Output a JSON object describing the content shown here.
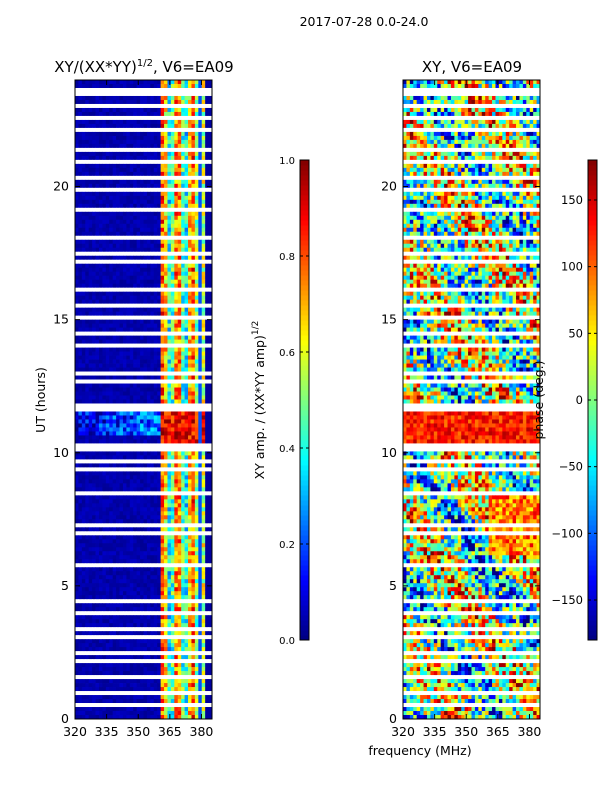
{
  "figure": {
    "suptitle": "2017-07-28 0.0-24.0",
    "shared_xlabel": "frequency (MHz)"
  },
  "colors": {
    "cmap": [
      "#00007f",
      "#0000ff",
      "#007fff",
      "#00ffff",
      "#7fff7f",
      "#ffff00",
      "#ff7f00",
      "#ff0000",
      "#7f0000"
    ],
    "gap": "#ffffff",
    "frame": "#000000"
  },
  "chart_data": [
    {
      "type": "heatmap",
      "title_text": "XY/(XX*YY)",
      "title_sup": "1/2",
      "title_suffix": ", V6=EA09",
      "ylabel": "UT (hours)",
      "xlabel": "",
      "xlim": [
        320,
        385
      ],
      "ylim": [
        0,
        24
      ],
      "xticks": [
        320,
        335,
        350,
        365,
        380
      ],
      "yticks": [
        0,
        5,
        10,
        15,
        20
      ],
      "variant": "amplitude",
      "colorbar": {
        "label_text": "XY amp. / (XX*YY amp)",
        "label_sup": "1/2",
        "range": [
          0.0,
          1.0
        ],
        "ticks": [
          0.0,
          0.2,
          0.4,
          0.6,
          0.8,
          1.0
        ],
        "tick_labels": [
          "0.0",
          "0.2",
          "0.4",
          "0.6",
          "0.8",
          "1.0"
        ]
      },
      "description": "Normalized XY cross-correlation amplitude vs frequency and UT; mostly near 0 below ~360 MHz, bright (0.5-1.0) striped bands between ~360-382 MHz, strong event near 11 UT."
    },
    {
      "type": "heatmap",
      "title_text": "XY, V6=EA09",
      "ylabel": "",
      "xlabel": "frequency (MHz)",
      "xlim": [
        320,
        385
      ],
      "ylim": [
        0,
        24
      ],
      "xticks": [
        320,
        335,
        350,
        365,
        380
      ],
      "yticks": [
        0,
        5,
        10,
        15,
        20
      ],
      "variant": "phase",
      "colorbar": {
        "label_text": "phase (deg.)",
        "range": [
          -180,
          180
        ],
        "ticks": [
          -150,
          -100,
          -50,
          0,
          50,
          100,
          150
        ],
        "tick_labels": [
          "−150",
          "−100",
          "−50",
          "0",
          "50",
          "100",
          "150"
        ]
      },
      "description": "XY cross-correlation phase in degrees vs frequency and UT; noisy patchwork spanning full -180..180 range, coherent red band near 10-11.5 UT."
    }
  ]
}
